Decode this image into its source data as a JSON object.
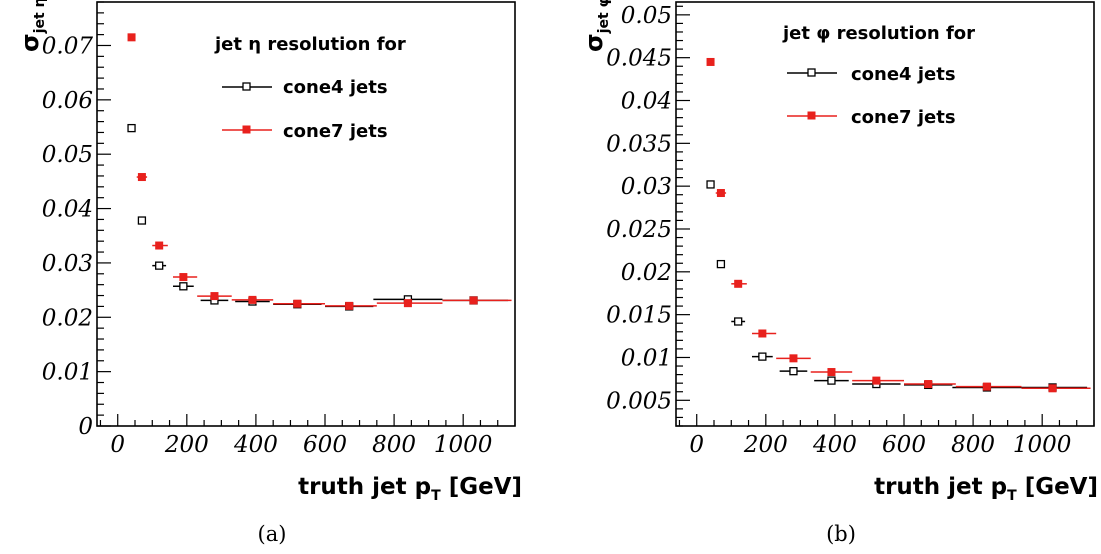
{
  "chart_data": [
    {
      "type": "scatter",
      "panel_caption": "(a)",
      "ylabel": {
        "symbol": "σ",
        "subscript": "jet η"
      },
      "xlabel": {
        "main": "truth jet p",
        "subscript": "T",
        "unit": "[GeV]"
      },
      "xlim": [
        -60,
        1150
      ],
      "ylim": [
        0,
        0.078
      ],
      "x_ticks": [
        0,
        200,
        400,
        600,
        800,
        1000
      ],
      "y_ticks": [
        0,
        0.01,
        0.02,
        0.03,
        0.04,
        0.05,
        0.06,
        0.07
      ],
      "y_tick_labels": [
        "0",
        "0.01",
        "0.02",
        "0.03",
        "0.04",
        "0.05",
        "0.06",
        "0.07"
      ],
      "legend_title": "jet η resolution for",
      "series": [
        {
          "name": "cone4 jets",
          "color": "#000000",
          "marker": "open-square",
          "points": [
            {
              "x": 40,
              "y": 0.0548,
              "xlo": 40,
              "xhi": 40
            },
            {
              "x": 70,
              "y": 0.0378,
              "xlo": 60,
              "xhi": 80
            },
            {
              "x": 120,
              "y": 0.0295,
              "xlo": 100,
              "xhi": 140
            },
            {
              "x": 190,
              "y": 0.0257,
              "xlo": 160,
              "xhi": 220
            },
            {
              "x": 280,
              "y": 0.0231,
              "xlo": 240,
              "xhi": 320
            },
            {
              "x": 390,
              "y": 0.0229,
              "xlo": 340,
              "xhi": 440
            },
            {
              "x": 520,
              "y": 0.0224,
              "xlo": 450,
              "xhi": 590
            },
            {
              "x": 670,
              "y": 0.022,
              "xlo": 600,
              "xhi": 740
            },
            {
              "x": 840,
              "y": 0.0233,
              "xlo": 740,
              "xhi": 940
            },
            {
              "x": 1030,
              "y": 0.0231,
              "xlo": 940,
              "xhi": 1130
            }
          ]
        },
        {
          "name": "cone7 jets",
          "color": "#e8211d",
          "marker": "filled-square",
          "points": [
            {
              "x": 40,
              "y": 0.0715,
              "xlo": 40,
              "xhi": 40
            },
            {
              "x": 70,
              "y": 0.0458,
              "xlo": 55,
              "xhi": 85
            },
            {
              "x": 120,
              "y": 0.0332,
              "xlo": 100,
              "xhi": 145
            },
            {
              "x": 190,
              "y": 0.0274,
              "xlo": 160,
              "xhi": 230
            },
            {
              "x": 280,
              "y": 0.0239,
              "xlo": 230,
              "xhi": 330
            },
            {
              "x": 390,
              "y": 0.0232,
              "xlo": 330,
              "xhi": 450
            },
            {
              "x": 520,
              "y": 0.0225,
              "xlo": 450,
              "xhi": 600
            },
            {
              "x": 670,
              "y": 0.0221,
              "xlo": 600,
              "xhi": 750
            },
            {
              "x": 840,
              "y": 0.0226,
              "xlo": 750,
              "xhi": 940
            },
            {
              "x": 1030,
              "y": 0.0231,
              "xlo": 940,
              "xhi": 1140
            }
          ]
        }
      ]
    },
    {
      "type": "scatter",
      "panel_caption": "(b)",
      "ylabel": {
        "symbol": "σ",
        "subscript": "jet φ"
      },
      "xlabel": {
        "main": "truth jet p",
        "subscript": "T",
        "unit": "[GeV]"
      },
      "xlim": [
        -60,
        1150
      ],
      "ylim": [
        0.002,
        0.0515
      ],
      "x_ticks": [
        0,
        200,
        400,
        600,
        800,
        1000
      ],
      "y_ticks": [
        0.005,
        0.01,
        0.015,
        0.02,
        0.025,
        0.03,
        0.035,
        0.04,
        0.045,
        0.05
      ],
      "y_tick_labels": [
        "0.005",
        "0.01",
        "0.015",
        "0.02",
        "0.025",
        "0.03",
        "0.035",
        "0.04",
        "0.045",
        "0.05"
      ],
      "legend_title": "jet φ resolution for",
      "series": [
        {
          "name": "cone4 jets",
          "color": "#000000",
          "marker": "open-square",
          "points": [
            {
              "x": 40,
              "y": 0.0302,
              "xlo": 40,
              "xhi": 40
            },
            {
              "x": 70,
              "y": 0.0209,
              "xlo": 60,
              "xhi": 80
            },
            {
              "x": 120,
              "y": 0.0142,
              "xlo": 100,
              "xhi": 140
            },
            {
              "x": 190,
              "y": 0.0101,
              "xlo": 160,
              "xhi": 220
            },
            {
              "x": 280,
              "y": 0.0084,
              "xlo": 240,
              "xhi": 320
            },
            {
              "x": 390,
              "y": 0.0073,
              "xlo": 340,
              "xhi": 440
            },
            {
              "x": 520,
              "y": 0.0069,
              "xlo": 450,
              "xhi": 590
            },
            {
              "x": 670,
              "y": 0.0068,
              "xlo": 600,
              "xhi": 740
            },
            {
              "x": 840,
              "y": 0.0065,
              "xlo": 740,
              "xhi": 940
            },
            {
              "x": 1030,
              "y": 0.0065,
              "xlo": 940,
              "xhi": 1130
            }
          ]
        },
        {
          "name": "cone7 jets",
          "color": "#e8211d",
          "marker": "filled-square",
          "points": [
            {
              "x": 40,
              "y": 0.0445,
              "xlo": 40,
              "xhi": 40
            },
            {
              "x": 70,
              "y": 0.0292,
              "xlo": 55,
              "xhi": 85
            },
            {
              "x": 120,
              "y": 0.0186,
              "xlo": 100,
              "xhi": 145
            },
            {
              "x": 190,
              "y": 0.0128,
              "xlo": 160,
              "xhi": 230
            },
            {
              "x": 280,
              "y": 0.0099,
              "xlo": 230,
              "xhi": 330
            },
            {
              "x": 390,
              "y": 0.0083,
              "xlo": 330,
              "xhi": 450
            },
            {
              "x": 520,
              "y": 0.0073,
              "xlo": 450,
              "xhi": 600
            },
            {
              "x": 670,
              "y": 0.0069,
              "xlo": 600,
              "xhi": 750
            },
            {
              "x": 840,
              "y": 0.0066,
              "xlo": 750,
              "xhi": 940
            },
            {
              "x": 1030,
              "y": 0.0064,
              "xlo": 940,
              "xhi": 1140
            }
          ]
        }
      ]
    }
  ]
}
